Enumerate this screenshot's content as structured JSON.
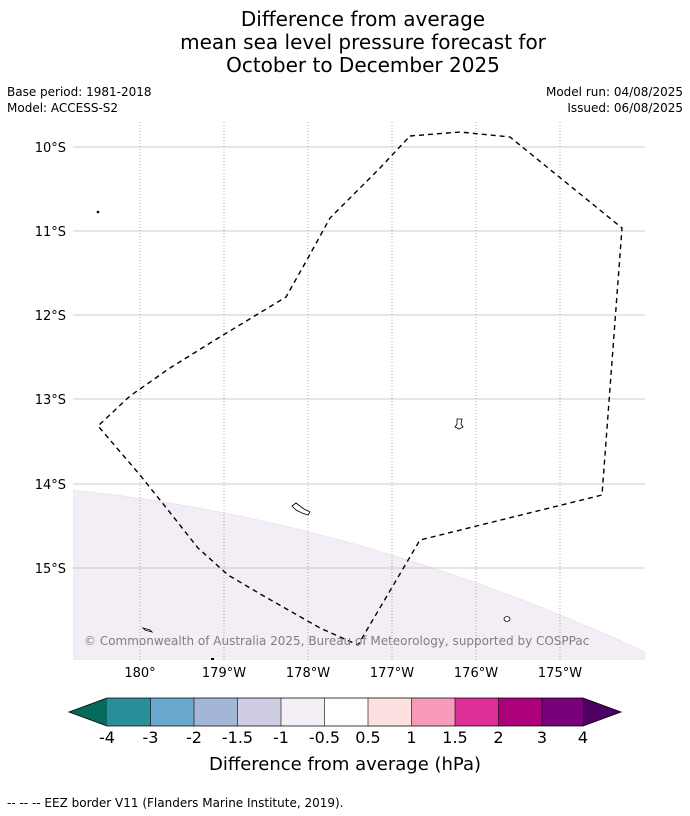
{
  "title": {
    "line1": "Difference from average",
    "line2": "mean sea level pressure forecast for",
    "line3": "October to December 2025"
  },
  "meta": {
    "base_period": "Base period: 1981-2018",
    "model": "Model: ACCESS-S2",
    "model_run": "Model run: 04/08/2025",
    "issued": "Issued: 06/08/2025"
  },
  "map": {
    "lon_ticks": [
      "180°",
      "179°W",
      "178°W",
      "177°W",
      "176°W",
      "175°W"
    ],
    "lat_ticks": [
      "10°S",
      "11°S",
      "12°S",
      "13°S",
      "14°S",
      "15°S"
    ],
    "copyright": "© Commonwealth of Australia 2025, Bureau of Meteorology, supported by COSPPac",
    "shading": {
      "category": "-0.5 to -1",
      "color": "#f3edf5",
      "description": "Slight negative anomaly in south-west corner"
    },
    "grid": true
  },
  "colorbar": {
    "label": "Difference from average (hPa)",
    "tick_labels": [
      "-4",
      "-3",
      "-2",
      "-1.5",
      "-1",
      "-0.5",
      "0.5",
      "1",
      "1.5",
      "2",
      "3",
      "4"
    ],
    "colors": [
      "#046b5b",
      "#2a8f9a",
      "#6aa8d0",
      "#a4b6d8",
      "#cdcce3",
      "#f3edf5",
      "#ffffff",
      "#fde0e0",
      "#f89ab9",
      "#dc3096",
      "#ad007b",
      "#780079",
      "#4b0062"
    ]
  },
  "footer": {
    "legend_text": "--  --  -- EEZ border V11 (Flanders Marine Institute, 2019)."
  }
}
